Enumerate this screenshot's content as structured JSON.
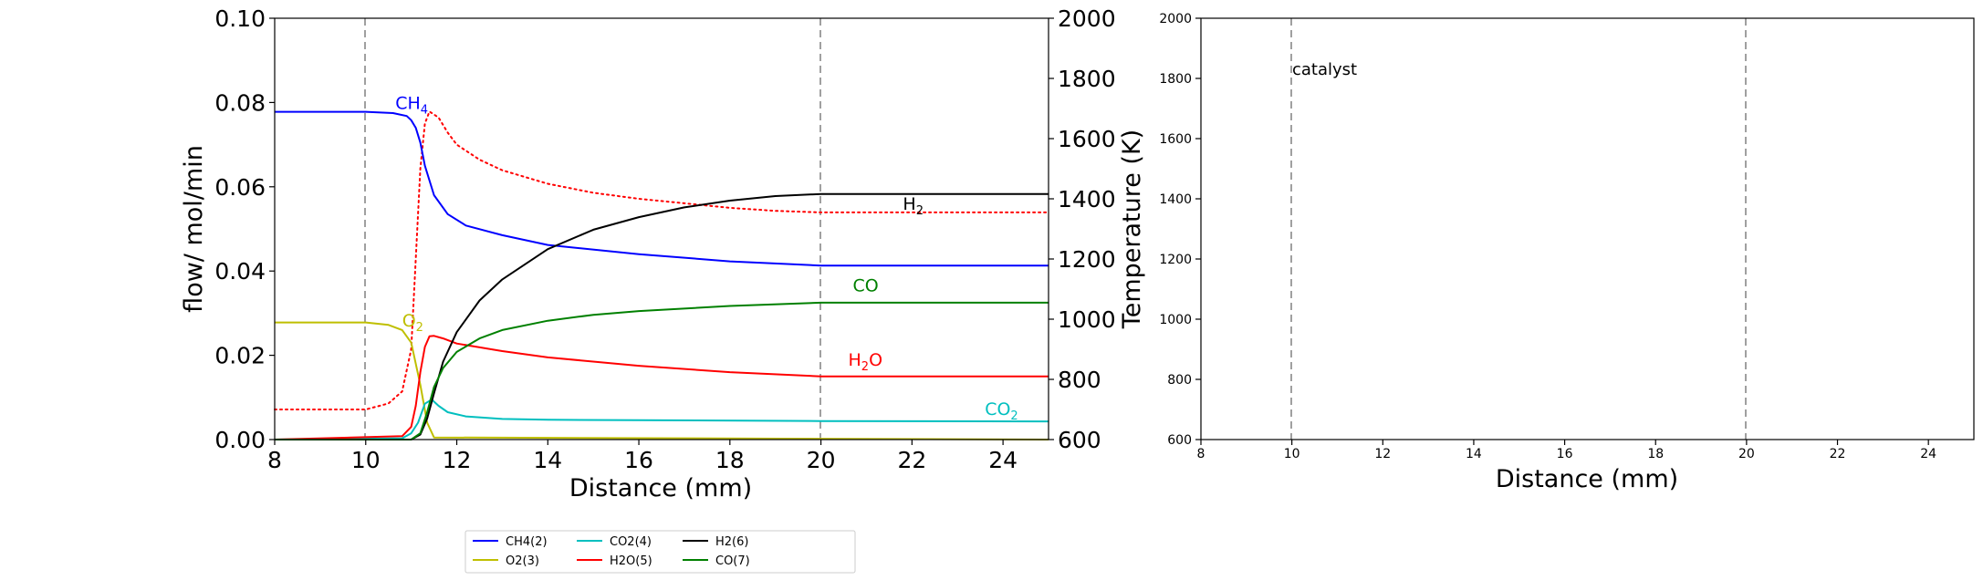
{
  "chart_data": [
    {
      "type": "line",
      "xlabel": "Distance (mm)",
      "ylabel": "flow/ mol/min",
      "y2label": "Temperature (K)",
      "xlim": [
        8,
        25
      ],
      "ylim": [
        0,
        0.1
      ],
      "y2lim": [
        600,
        2000
      ],
      "x_ticks": [
        "8",
        "10",
        "12",
        "14",
        "16",
        "18",
        "20",
        "22",
        "24"
      ],
      "y_ticks": [
        "0.00",
        "0.02",
        "0.04",
        "0.06",
        "0.08",
        "0.10"
      ],
      "y2_ticks": [
        "600",
        "800",
        "1000",
        "1200",
        "1400",
        "1600",
        "1800",
        "2000"
      ],
      "vlines": [
        10,
        20
      ],
      "grid": false,
      "legend_position": "bottom-center",
      "series": [
        {
          "name": "CH4(2)",
          "color": "#0000ff",
          "label_base": "CH",
          "label_sub": "4",
          "x": [
            8,
            10,
            10.6,
            10.9,
            11.0,
            11.1,
            11.2,
            11.3,
            11.5,
            11.8,
            12.2,
            13,
            14,
            16,
            18,
            20,
            25
          ],
          "y": [
            0.0778,
            0.0778,
            0.0775,
            0.0768,
            0.0758,
            0.074,
            0.0705,
            0.065,
            0.058,
            0.0535,
            0.0508,
            0.0485,
            0.0462,
            0.044,
            0.0423,
            0.0413,
            0.0413
          ]
        },
        {
          "name": "O2(3)",
          "color": "#bfbf00",
          "label_base": "O",
          "label_sub": "2",
          "x": [
            8,
            10,
            10.5,
            10.8,
            11.0,
            11.2,
            11.35,
            11.5,
            25
          ],
          "y": [
            0.0278,
            0.0278,
            0.0272,
            0.026,
            0.023,
            0.013,
            0.004,
            0.0005,
            0.0
          ]
        },
        {
          "name": "CO2(4)",
          "color": "#00bfbf",
          "label_base": "CO",
          "label_sub": "2",
          "x": [
            8,
            10.8,
            11.0,
            11.15,
            11.3,
            11.45,
            11.6,
            11.8,
            12.2,
            13,
            14,
            16,
            20,
            25
          ],
          "y": [
            0.0,
            0.0003,
            0.0015,
            0.004,
            0.0085,
            0.0095,
            0.008,
            0.0065,
            0.0055,
            0.0049,
            0.0047,
            0.0046,
            0.0044,
            0.0043
          ]
        },
        {
          "name": "H2O(5)",
          "color": "#ff0000",
          "label_base": "H",
          "label_sub": "2",
          "label_tail": "O",
          "x": [
            8,
            10.8,
            11.0,
            11.1,
            11.2,
            11.3,
            11.4,
            11.5,
            11.7,
            12,
            13,
            14,
            16,
            18,
            20,
            25
          ],
          "y": [
            0.0,
            0.0008,
            0.003,
            0.008,
            0.016,
            0.022,
            0.0245,
            0.0246,
            0.024,
            0.0228,
            0.021,
            0.0195,
            0.0175,
            0.016,
            0.015,
            0.015
          ]
        },
        {
          "name": "H2(6)",
          "color": "#000000",
          "label_base": "H",
          "label_sub": "2",
          "x": [
            8,
            11.0,
            11.2,
            11.35,
            11.5,
            11.7,
            12,
            12.5,
            13,
            14,
            15,
            16,
            17,
            18,
            19,
            20,
            25
          ],
          "y": [
            0.0,
            0.0,
            0.0012,
            0.005,
            0.011,
            0.0185,
            0.0255,
            0.033,
            0.038,
            0.0452,
            0.0498,
            0.0528,
            0.0551,
            0.0567,
            0.0578,
            0.0583,
            0.0583
          ]
        },
        {
          "name": "CO(7)",
          "color": "#008000",
          "label_base": "CO",
          "label_sub": "",
          "x": [
            8,
            11.0,
            11.2,
            11.35,
            11.5,
            11.7,
            12,
            12.5,
            13,
            14,
            15,
            16,
            18,
            20,
            25
          ],
          "y": [
            0.0,
            0.0,
            0.0015,
            0.0065,
            0.0125,
            0.017,
            0.0208,
            0.024,
            0.026,
            0.0282,
            0.0296,
            0.0305,
            0.0317,
            0.0325,
            0.0325
          ]
        }
      ],
      "temperature": {
        "color": "#ff0000",
        "style": "dotted",
        "x": [
          8,
          10,
          10.5,
          10.8,
          11.0,
          11.1,
          11.2,
          11.3,
          11.4,
          11.6,
          11.8,
          12,
          12.5,
          13,
          14,
          15,
          16,
          17,
          18,
          19,
          20,
          25
        ],
        "y": [
          700,
          700,
          720,
          760,
          900,
          1200,
          1500,
          1650,
          1690,
          1670,
          1620,
          1580,
          1530,
          1495,
          1450,
          1420,
          1400,
          1385,
          1370,
          1360,
          1355,
          1355
        ]
      }
    },
    {
      "type": "line",
      "xlabel": "Distance (mm)",
      "ylabel": "",
      "xlim": [
        8,
        25
      ],
      "ylim": [
        600,
        2000
      ],
      "x_ticks": [
        "8",
        "10",
        "12",
        "14",
        "16",
        "18",
        "20",
        "22",
        "24"
      ],
      "y_ticks": [
        "600",
        "800",
        "1000",
        "1200",
        "1400",
        "1600",
        "1800",
        "2000"
      ],
      "vlines": [
        10,
        20
      ],
      "grid": false,
      "annotation": "catalyst",
      "series": []
    }
  ]
}
